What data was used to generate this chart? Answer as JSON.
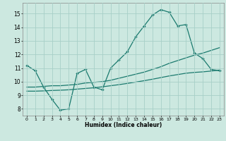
{
  "title": "",
  "xlabel": "Humidex (Indice chaleur)",
  "xlim": [
    -0.5,
    23.5
  ],
  "ylim": [
    7.5,
    15.8
  ],
  "yticks": [
    8,
    9,
    10,
    11,
    12,
    13,
    14,
    15
  ],
  "xticks": [
    0,
    1,
    2,
    3,
    4,
    5,
    6,
    7,
    8,
    9,
    10,
    11,
    12,
    13,
    14,
    15,
    16,
    17,
    18,
    19,
    20,
    21,
    22,
    23
  ],
  "bg_color": "#cce8e0",
  "grid_color": "#a8cfc8",
  "line_color": "#1a7a6e",
  "line1_x": [
    0,
    1,
    2,
    3,
    4,
    5,
    6,
    7,
    8,
    9,
    10,
    11,
    12,
    13,
    14,
    15,
    16,
    17,
    18,
    19,
    20,
    21,
    22,
    23
  ],
  "line1_y": [
    11.2,
    10.8,
    9.6,
    8.7,
    7.9,
    8.0,
    10.6,
    10.9,
    9.6,
    9.4,
    11.0,
    11.6,
    12.2,
    13.3,
    14.1,
    14.9,
    15.3,
    15.1,
    14.1,
    14.2,
    12.1,
    11.7,
    10.9,
    10.8
  ],
  "line2_x": [
    0,
    1,
    2,
    3,
    4,
    5,
    6,
    7,
    8,
    9,
    10,
    11,
    12,
    13,
    14,
    15,
    16,
    17,
    18,
    19,
    20,
    21,
    22,
    23
  ],
  "line2_y": [
    9.6,
    9.6,
    9.65,
    9.7,
    9.7,
    9.75,
    9.8,
    9.9,
    9.95,
    10.0,
    10.1,
    10.25,
    10.4,
    10.55,
    10.7,
    10.9,
    11.1,
    11.35,
    11.55,
    11.75,
    11.95,
    12.1,
    12.3,
    12.5
  ],
  "line3_x": [
    0,
    1,
    2,
    3,
    4,
    5,
    6,
    7,
    8,
    9,
    10,
    11,
    12,
    13,
    14,
    15,
    16,
    17,
    18,
    19,
    20,
    21,
    22,
    23
  ],
  "line3_y": [
    9.3,
    9.3,
    9.32,
    9.35,
    9.37,
    9.4,
    9.45,
    9.5,
    9.55,
    9.62,
    9.7,
    9.78,
    9.87,
    9.97,
    10.07,
    10.18,
    10.3,
    10.42,
    10.52,
    10.62,
    10.68,
    10.72,
    10.78,
    10.85
  ]
}
